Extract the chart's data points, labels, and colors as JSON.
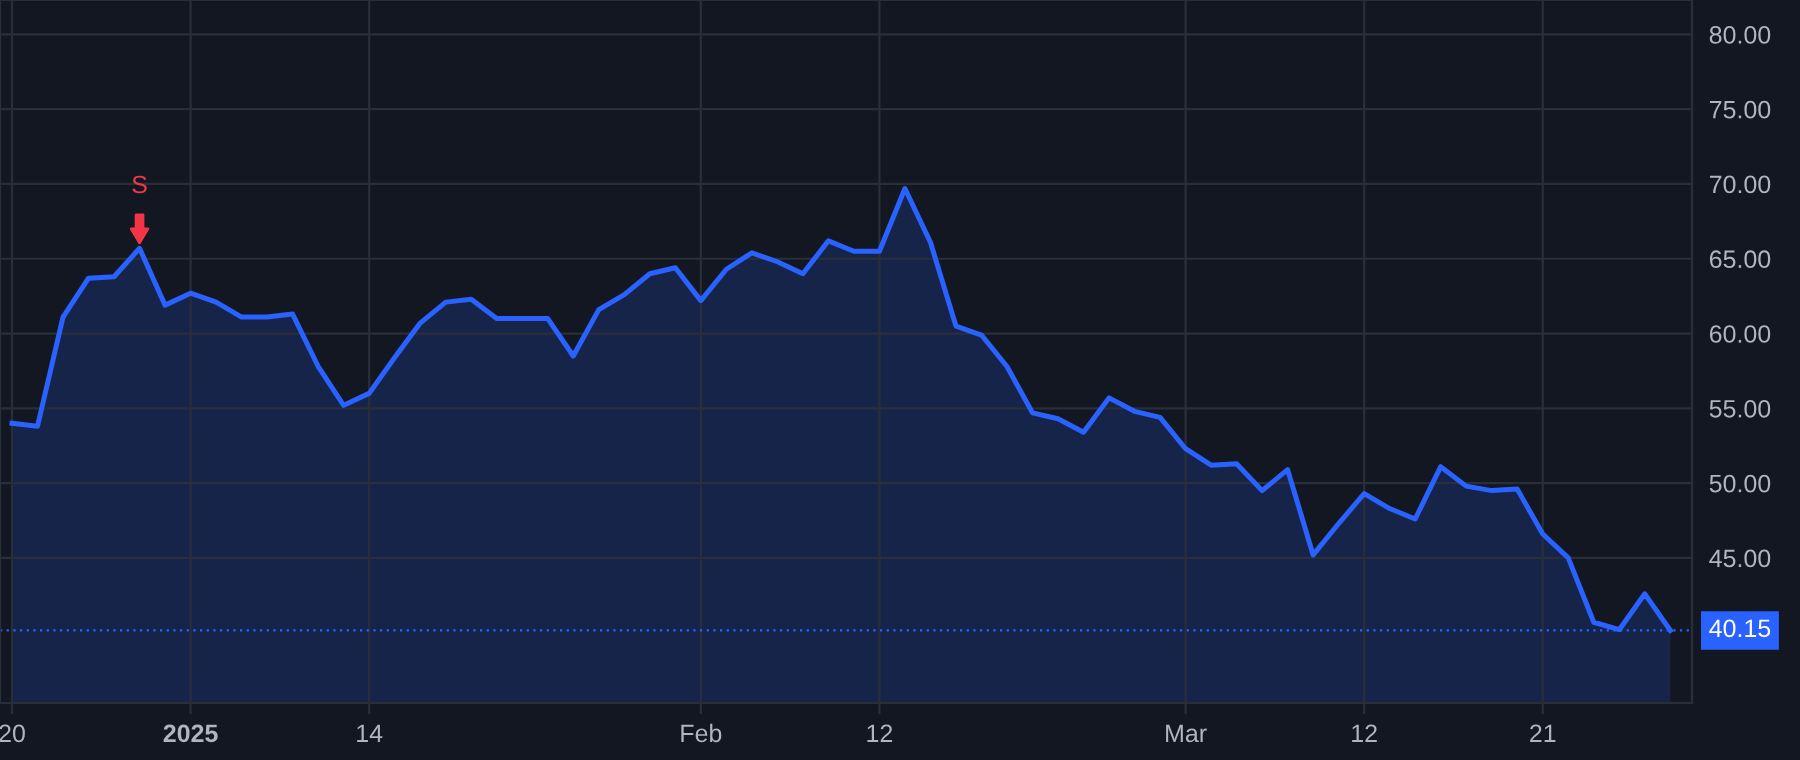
{
  "chart_data": {
    "type": "area",
    "categories": [
      "20",
      null,
      null,
      null,
      null,
      null,
      null,
      "2025",
      null,
      null,
      null,
      null,
      null,
      null,
      "14",
      null,
      null,
      null,
      null,
      null,
      null,
      null,
      null,
      null,
      null,
      null,
      null,
      "Feb",
      null,
      null,
      null,
      null,
      null,
      null,
      "12",
      null,
      null,
      null,
      null,
      null,
      null,
      null,
      null,
      null,
      null,
      null,
      "Mar",
      null,
      null,
      null,
      null,
      null,
      null,
      "12",
      null,
      null,
      null,
      null,
      null,
      null,
      "21",
      null,
      null,
      null,
      null,
      null
    ],
    "series": [
      {
        "color": "#2962ff",
        "values": [
          54.0,
          53.8,
          61.1,
          63.7,
          63.8,
          65.7,
          61.9,
          62.7,
          62.1,
          61.1,
          61.1,
          61.3,
          57.8,
          55.2,
          56.0,
          58.4,
          60.7,
          62.1,
          62.3,
          61.0,
          61.0,
          61.0,
          58.5,
          61.6,
          62.6,
          64.0,
          64.4,
          62.2,
          64.3,
          65.4,
          64.8,
          64.0,
          66.2,
          65.5,
          65.5,
          69.7,
          66.1,
          60.5,
          59.9,
          57.8,
          54.7,
          54.3,
          53.4,
          55.7,
          54.8,
          54.4,
          52.3,
          51.2,
          51.3,
          49.5,
          50.9,
          45.2,
          47.3,
          49.3,
          48.3,
          47.6,
          51.1,
          49.8,
          49.5,
          49.6,
          46.6,
          45.0,
          40.7,
          40.2,
          42.6,
          40.15
        ]
      }
    ],
    "ylim": [
      35.3,
      82.3
    ],
    "yticks": [
      {
        "value": 45,
        "label": "45.00"
      },
      {
        "value": 50,
        "label": "50.00"
      },
      {
        "value": 55,
        "label": "55.00"
      },
      {
        "value": 60,
        "label": "60.00"
      },
      {
        "value": 65,
        "label": "65.00"
      },
      {
        "value": 70,
        "label": "70.00"
      },
      {
        "value": 75,
        "label": "75.00"
      },
      {
        "value": 80,
        "label": "80.00"
      }
    ],
    "grid": true,
    "ref_lines": [
      {
        "axis": "y",
        "value": 40.15,
        "label": "40.15",
        "color": "#2962ff",
        "line_style": "dotted"
      }
    ],
    "annotations": [
      {
        "text": "S",
        "y": 65.7
      }
    ]
  }
}
